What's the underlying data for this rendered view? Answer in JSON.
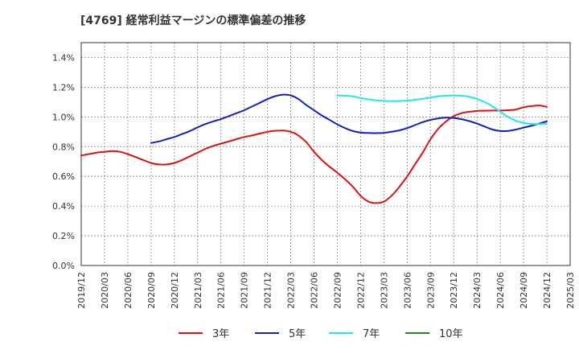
{
  "chart_data": {
    "type": "line",
    "title": "[4769]  経常利益マージンの標準偏差の推移",
    "xlabel": "",
    "ylabel": "",
    "x_tick_labels": [
      "2019/12",
      "2020/03",
      "2020/06",
      "2020/09",
      "2020/12",
      "2021/03",
      "2021/06",
      "2021/09",
      "2021/12",
      "2022/03",
      "2022/06",
      "2022/09",
      "2022/12",
      "2023/03",
      "2023/06",
      "2023/09",
      "2023/12",
      "2024/03",
      "2024/06",
      "2024/09",
      "2024/12",
      "2025/03"
    ],
    "y_tick_labels": [
      "0.0%",
      "0.2%",
      "0.4%",
      "0.6%",
      "0.8%",
      "1.0%",
      "1.2%",
      "1.4%"
    ],
    "ylim": [
      0,
      1.5
    ],
    "grid": true,
    "legend_position": "bottom",
    "series": [
      {
        "name": "3年",
        "color": "#dd1111",
        "points": [
          [
            "2019/12",
            0.74
          ],
          [
            "2020/01",
            0.75
          ],
          [
            "2020/02",
            0.76
          ],
          [
            "2020/03",
            0.765
          ],
          [
            "2020/04",
            0.77
          ],
          [
            "2020/05",
            0.765
          ],
          [
            "2020/06",
            0.75
          ],
          [
            "2020/07",
            0.73
          ],
          [
            "2020/08",
            0.71
          ],
          [
            "2020/09",
            0.69
          ],
          [
            "2020/10",
            0.68
          ],
          [
            "2020/11",
            0.68
          ],
          [
            "2020/12",
            0.69
          ],
          [
            "2021/01",
            0.71
          ],
          [
            "2021/02",
            0.735
          ],
          [
            "2021/03",
            0.76
          ],
          [
            "2021/04",
            0.785
          ],
          [
            "2021/05",
            0.805
          ],
          [
            "2021/06",
            0.82
          ],
          [
            "2021/07",
            0.835
          ],
          [
            "2021/08",
            0.85
          ],
          [
            "2021/09",
            0.865
          ],
          [
            "2021/10",
            0.875
          ],
          [
            "2021/11",
            0.888
          ],
          [
            "2021/12",
            0.9
          ],
          [
            "2022/01",
            0.907
          ],
          [
            "2022/02",
            0.908
          ],
          [
            "2022/03",
            0.9
          ],
          [
            "2022/04",
            0.875
          ],
          [
            "2022/05",
            0.83
          ],
          [
            "2022/06",
            0.765
          ],
          [
            "2022/07",
            0.71
          ],
          [
            "2022/08",
            0.665
          ],
          [
            "2022/09",
            0.625
          ],
          [
            "2022/10",
            0.58
          ],
          [
            "2022/11",
            0.53
          ],
          [
            "2022/12",
            0.47
          ],
          [
            "2023/01",
            0.43
          ],
          [
            "2023/02",
            0.42
          ],
          [
            "2023/03",
            0.43
          ],
          [
            "2023/04",
            0.47
          ],
          [
            "2023/05",
            0.53
          ],
          [
            "2023/06",
            0.6
          ],
          [
            "2023/07",
            0.68
          ],
          [
            "2023/08",
            0.76
          ],
          [
            "2023/09",
            0.85
          ],
          [
            "2023/10",
            0.92
          ],
          [
            "2023/11",
            0.97
          ],
          [
            "2023/12",
            1.005
          ],
          [
            "2024/01",
            1.025
          ],
          [
            "2024/02",
            1.035
          ],
          [
            "2024/03",
            1.04
          ],
          [
            "2024/04",
            1.042
          ],
          [
            "2024/05",
            1.043
          ],
          [
            "2024/06",
            1.043
          ],
          [
            "2024/07",
            1.045
          ],
          [
            "2024/08",
            1.05
          ],
          [
            "2024/09",
            1.065
          ],
          [
            "2024/10",
            1.073
          ],
          [
            "2024/11",
            1.077
          ],
          [
            "2024/12",
            1.068
          ]
        ]
      },
      {
        "name": "5年",
        "color": "#1122bb",
        "points": [
          [
            "2020/09",
            0.825
          ],
          [
            "2020/10",
            0.835
          ],
          [
            "2020/11",
            0.85
          ],
          [
            "2020/12",
            0.865
          ],
          [
            "2021/01",
            0.885
          ],
          [
            "2021/02",
            0.905
          ],
          [
            "2021/03",
            0.93
          ],
          [
            "2021/04",
            0.952
          ],
          [
            "2021/05",
            0.97
          ],
          [
            "2021/06",
            0.985
          ],
          [
            "2021/07",
            1.005
          ],
          [
            "2021/08",
            1.025
          ],
          [
            "2021/09",
            1.045
          ],
          [
            "2021/10",
            1.07
          ],
          [
            "2021/11",
            1.095
          ],
          [
            "2021/12",
            1.12
          ],
          [
            "2022/01",
            1.14
          ],
          [
            "2022/02",
            1.15
          ],
          [
            "2022/03",
            1.145
          ],
          [
            "2022/04",
            1.12
          ],
          [
            "2022/05",
            1.08
          ],
          [
            "2022/06",
            1.045
          ],
          [
            "2022/07",
            1.01
          ],
          [
            "2022/08",
            0.98
          ],
          [
            "2022/09",
            0.95
          ],
          [
            "2022/10",
            0.925
          ],
          [
            "2022/11",
            0.905
          ],
          [
            "2022/12",
            0.895
          ],
          [
            "2023/01",
            0.892
          ],
          [
            "2023/02",
            0.891
          ],
          [
            "2023/03",
            0.893
          ],
          [
            "2023/04",
            0.9
          ],
          [
            "2023/05",
            0.91
          ],
          [
            "2023/06",
            0.925
          ],
          [
            "2023/07",
            0.945
          ],
          [
            "2023/08",
            0.965
          ],
          [
            "2023/09",
            0.98
          ],
          [
            "2023/10",
            0.99
          ],
          [
            "2023/11",
            0.995
          ],
          [
            "2023/12",
            0.993
          ],
          [
            "2024/01",
            0.985
          ],
          [
            "2024/02",
            0.972
          ],
          [
            "2024/03",
            0.955
          ],
          [
            "2024/04",
            0.935
          ],
          [
            "2024/05",
            0.915
          ],
          [
            "2024/06",
            0.905
          ],
          [
            "2024/07",
            0.906
          ],
          [
            "2024/08",
            0.915
          ],
          [
            "2024/09",
            0.928
          ],
          [
            "2024/10",
            0.94
          ],
          [
            "2024/11",
            0.955
          ],
          [
            "2024/12",
            0.97
          ]
        ]
      },
      {
        "name": "7年",
        "color": "#22e5f0",
        "points": [
          [
            "2022/09",
            1.145
          ],
          [
            "2022/10",
            1.143
          ],
          [
            "2022/11",
            1.138
          ],
          [
            "2022/12",
            1.128
          ],
          [
            "2023/01",
            1.118
          ],
          [
            "2023/02",
            1.112
          ],
          [
            "2023/03",
            1.108
          ],
          [
            "2023/04",
            1.106
          ],
          [
            "2023/05",
            1.107
          ],
          [
            "2023/06",
            1.11
          ],
          [
            "2023/07",
            1.115
          ],
          [
            "2023/08",
            1.122
          ],
          [
            "2023/09",
            1.13
          ],
          [
            "2023/10",
            1.138
          ],
          [
            "2023/11",
            1.143
          ],
          [
            "2023/12",
            1.145
          ],
          [
            "2024/01",
            1.143
          ],
          [
            "2024/02",
            1.135
          ],
          [
            "2024/03",
            1.12
          ],
          [
            "2024/04",
            1.1
          ],
          [
            "2024/05",
            1.07
          ],
          [
            "2024/06",
            1.035
          ],
          [
            "2024/07",
            1.0
          ],
          [
            "2024/08",
            0.975
          ],
          [
            "2024/09",
            0.96
          ],
          [
            "2024/10",
            0.953
          ],
          [
            "2024/11",
            0.952
          ],
          [
            "2024/12",
            0.955
          ]
        ]
      },
      {
        "name": "10年",
        "color": "#228822",
        "points": []
      }
    ]
  }
}
